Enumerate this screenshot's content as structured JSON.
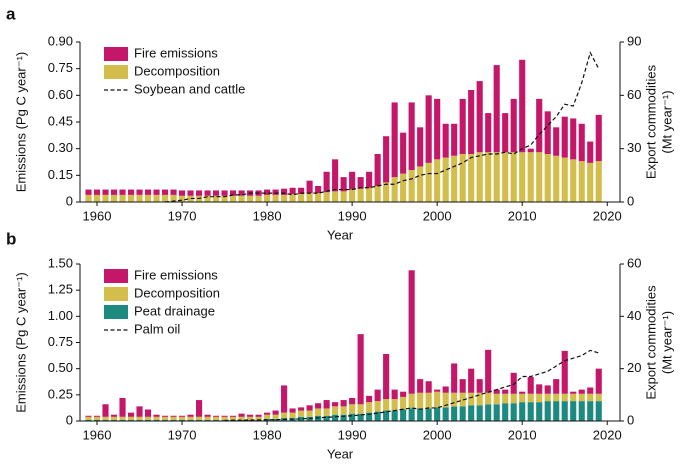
{
  "chart_data": [
    {
      "type": "bar",
      "panel_label": "a",
      "stacked": true,
      "legend": "upper left",
      "xlabel": "Year",
      "ylabel": "Emissions (Pg C year⁻¹)",
      "y2label": [
        "Export commodities",
        "(Mt year⁻¹)"
      ],
      "x": [
        1959,
        1960,
        1961,
        1962,
        1963,
        1964,
        1965,
        1966,
        1967,
        1968,
        1969,
        1970,
        1971,
        1972,
        1973,
        1974,
        1975,
        1976,
        1977,
        1978,
        1979,
        1980,
        1981,
        1982,
        1983,
        1984,
        1985,
        1986,
        1987,
        1988,
        1989,
        1990,
        1991,
        1992,
        1993,
        1994,
        1995,
        1996,
        1997,
        1998,
        1999,
        2000,
        2001,
        2002,
        2003,
        2004,
        2005,
        2006,
        2007,
        2008,
        2009,
        2010,
        2011,
        2012,
        2013,
        2014,
        2015,
        2016,
        2017,
        2018,
        2019
      ],
      "xlim": [
        1958,
        2021.5
      ],
      "xticks": [
        1960,
        1970,
        1980,
        1990,
        2000,
        2010,
        2020
      ],
      "ylim": [
        0,
        0.9
      ],
      "yticks": [
        0,
        0.15,
        {
          "value": 0.3,
          "label": "0.30"
        },
        0.45,
        {
          "value": 0.6,
          "label": "0.60"
        },
        0.75,
        {
          "value": 0.9,
          "label": "0.90"
        }
      ],
      "y2lim": [
        0,
        90
      ],
      "y2ticks": [
        0,
        30,
        60,
        90
      ],
      "series": [
        {
          "name": "Decomposition",
          "color": "#d3bd4b",
          "kind": "bar",
          "values": [
            0.04,
            0.04,
            0.04,
            0.04,
            0.04,
            0.04,
            0.04,
            0.04,
            0.04,
            0.04,
            0.04,
            0.035,
            0.035,
            0.035,
            0.035,
            0.035,
            0.035,
            0.035,
            0.035,
            0.035,
            0.035,
            0.04,
            0.04,
            0.04,
            0.045,
            0.045,
            0.05,
            0.05,
            0.055,
            0.06,
            0.06,
            0.07,
            0.075,
            0.08,
            0.09,
            0.11,
            0.14,
            0.16,
            0.18,
            0.2,
            0.22,
            0.24,
            0.25,
            0.26,
            0.27,
            0.27,
            0.28,
            0.28,
            0.28,
            0.28,
            0.28,
            0.28,
            0.28,
            0.28,
            0.27,
            0.26,
            0.25,
            0.24,
            0.23,
            0.22,
            0.23
          ]
        },
        {
          "name": "Fire emissions",
          "color": "#c4176a",
          "kind": "bar",
          "values": [
            0.03,
            0.03,
            0.03,
            0.03,
            0.03,
            0.03,
            0.03,
            0.03,
            0.03,
            0.03,
            0.03,
            0.03,
            0.03,
            0.03,
            0.03,
            0.03,
            0.03,
            0.03,
            0.03,
            0.03,
            0.03,
            0.03,
            0.03,
            0.035,
            0.035,
            0.035,
            0.07,
            0.04,
            0.115,
            0.18,
            0.08,
            0.1,
            0.065,
            0.09,
            0.18,
            0.26,
            0.42,
            0.23,
            0.38,
            0.22,
            0.38,
            0.34,
            0.19,
            0.18,
            0.31,
            0.36,
            0.4,
            0.22,
            0.49,
            0.22,
            0.3,
            0.52,
            0.02,
            0.3,
            0.24,
            0.16,
            0.23,
            0.23,
            0.21,
            0.12,
            0.26
          ]
        },
        {
          "name": "Soybean and cattle",
          "color": "#111111",
          "kind": "line",
          "axis": "y2",
          "values": [
            null,
            null,
            null,
            null,
            null,
            null,
            null,
            null,
            null,
            0,
            0.5,
            1,
            2,
            2,
            3,
            3,
            3,
            4,
            4,
            5,
            5,
            5,
            5,
            5,
            4,
            5,
            5,
            5,
            6,
            7,
            7,
            7,
            8,
            8,
            9,
            10,
            10,
            12,
            13,
            15,
            16,
            16,
            18,
            20,
            22,
            25,
            26,
            27,
            27,
            28,
            27,
            30,
            32,
            38,
            43,
            48,
            55,
            54,
            67,
            84,
            75
          ]
        }
      ]
    },
    {
      "type": "bar",
      "panel_label": "b",
      "stacked": true,
      "legend": "upper left",
      "xlabel": "Year",
      "ylabel": "Emissions (Pg C year⁻¹)",
      "y2label": [
        "Export commodities",
        "(Mt year⁻¹)"
      ],
      "x": [
        1959,
        1960,
        1961,
        1962,
        1963,
        1964,
        1965,
        1966,
        1967,
        1968,
        1969,
        1970,
        1971,
        1972,
        1973,
        1974,
        1975,
        1976,
        1977,
        1978,
        1979,
        1980,
        1981,
        1982,
        1983,
        1984,
        1985,
        1986,
        1987,
        1988,
        1989,
        1990,
        1991,
        1992,
        1993,
        1994,
        1995,
        1996,
        1997,
        1998,
        1999,
        2000,
        2001,
        2002,
        2003,
        2004,
        2005,
        2006,
        2007,
        2008,
        2009,
        2010,
        2011,
        2012,
        2013,
        2014,
        2015,
        2016,
        2017,
        2018,
        2019
      ],
      "xlim": [
        1958,
        2021.5
      ],
      "xticks": [
        1960,
        1970,
        1980,
        1990,
        2000,
        2010,
        2020
      ],
      "ylim": [
        0,
        1.5
      ],
      "yticks": [
        0,
        0.25,
        {
          "value": 0.5,
          "label": "0.50"
        },
        0.75,
        {
          "value": 1,
          "label": "1.00"
        },
        1.25,
        {
          "value": 1.5,
          "label": "1.50"
        }
      ],
      "y2lim": [
        0,
        60
      ],
      "y2ticks": [
        0,
        20,
        40,
        60
      ],
      "series": [
        {
          "name": "Peat drainage",
          "color": "#1c8a80",
          "kind": "bar",
          "values": [
            0.01,
            0.01,
            0.01,
            0.01,
            0.01,
            0.01,
            0.01,
            0.01,
            0.01,
            0.01,
            0.01,
            0.01,
            0.01,
            0.01,
            0.01,
            0.01,
            0.01,
            0.01,
            0.01,
            0.01,
            0.01,
            0.02,
            0.02,
            0.03,
            0.03,
            0.04,
            0.04,
            0.05,
            0.05,
            0.06,
            0.06,
            0.07,
            0.07,
            0.08,
            0.09,
            0.1,
            0.1,
            0.11,
            0.12,
            0.12,
            0.12,
            0.13,
            0.13,
            0.14,
            0.14,
            0.15,
            0.15,
            0.16,
            0.16,
            0.17,
            0.17,
            0.18,
            0.18,
            0.18,
            0.19,
            0.19,
            0.19,
            0.19,
            0.19,
            0.19,
            0.19
          ]
        },
        {
          "name": "Decomposition",
          "color": "#d3bd4b",
          "kind": "bar",
          "values": [
            0.03,
            0.03,
            0.03,
            0.03,
            0.03,
            0.03,
            0.03,
            0.03,
            0.03,
            0.03,
            0.03,
            0.03,
            0.03,
            0.03,
            0.03,
            0.03,
            0.03,
            0.03,
            0.03,
            0.03,
            0.03,
            0.04,
            0.04,
            0.05,
            0.05,
            0.06,
            0.06,
            0.07,
            0.07,
            0.08,
            0.08,
            0.09,
            0.09,
            0.1,
            0.1,
            0.11,
            0.11,
            0.12,
            0.14,
            0.15,
            0.15,
            0.15,
            0.14,
            0.13,
            0.13,
            0.12,
            0.12,
            0.11,
            0.1,
            0.09,
            0.09,
            0.08,
            0.08,
            0.08,
            0.07,
            0.07,
            0.07,
            0.07,
            0.07,
            0.07,
            0.07
          ]
        },
        {
          "name": "Fire emissions",
          "color": "#c4176a",
          "kind": "bar",
          "values": [
            0.01,
            0.01,
            0.12,
            0.02,
            0.18,
            0.04,
            0.1,
            0.07,
            0.02,
            0.01,
            0.01,
            0.01,
            0.02,
            0.16,
            0.02,
            0.01,
            0.01,
            0.01,
            0.03,
            0.02,
            0.02,
            0.02,
            0.04,
            0.26,
            0.04,
            0.03,
            0.05,
            0.05,
            0.08,
            0.04,
            0.06,
            0.06,
            0.67,
            0.06,
            0.11,
            0.43,
            0.09,
            0.05,
            1.18,
            0.13,
            0.11,
            0.02,
            0.06,
            0.28,
            0.13,
            0.23,
            0.13,
            0.41,
            0.04,
            0.04,
            0.2,
            0.02,
            0.16,
            0.09,
            0.08,
            0.14,
            0.41,
            0.02,
            0.04,
            0.06,
            0.24
          ]
        },
        {
          "name": "Palm oil",
          "color": "#111111",
          "kind": "line",
          "axis": "y2",
          "values": [
            null,
            null,
            null,
            null,
            null,
            null,
            null,
            null,
            null,
            null,
            null,
            null,
            null,
            null,
            null,
            null,
            0.2,
            0.3,
            0.3,
            0.4,
            0.4,
            0.5,
            0.5,
            0.6,
            0.7,
            0.8,
            1,
            1.2,
            1.4,
            1.6,
            1.8,
            2,
            2.3,
            2.6,
            3,
            3.5,
            4,
            4.5,
            5,
            4.5,
            5,
            5,
            6,
            7,
            8,
            9,
            10,
            11,
            12,
            13,
            14,
            17,
            17,
            18,
            19,
            21,
            23,
            24,
            25,
            27,
            26
          ]
        }
      ]
    }
  ]
}
